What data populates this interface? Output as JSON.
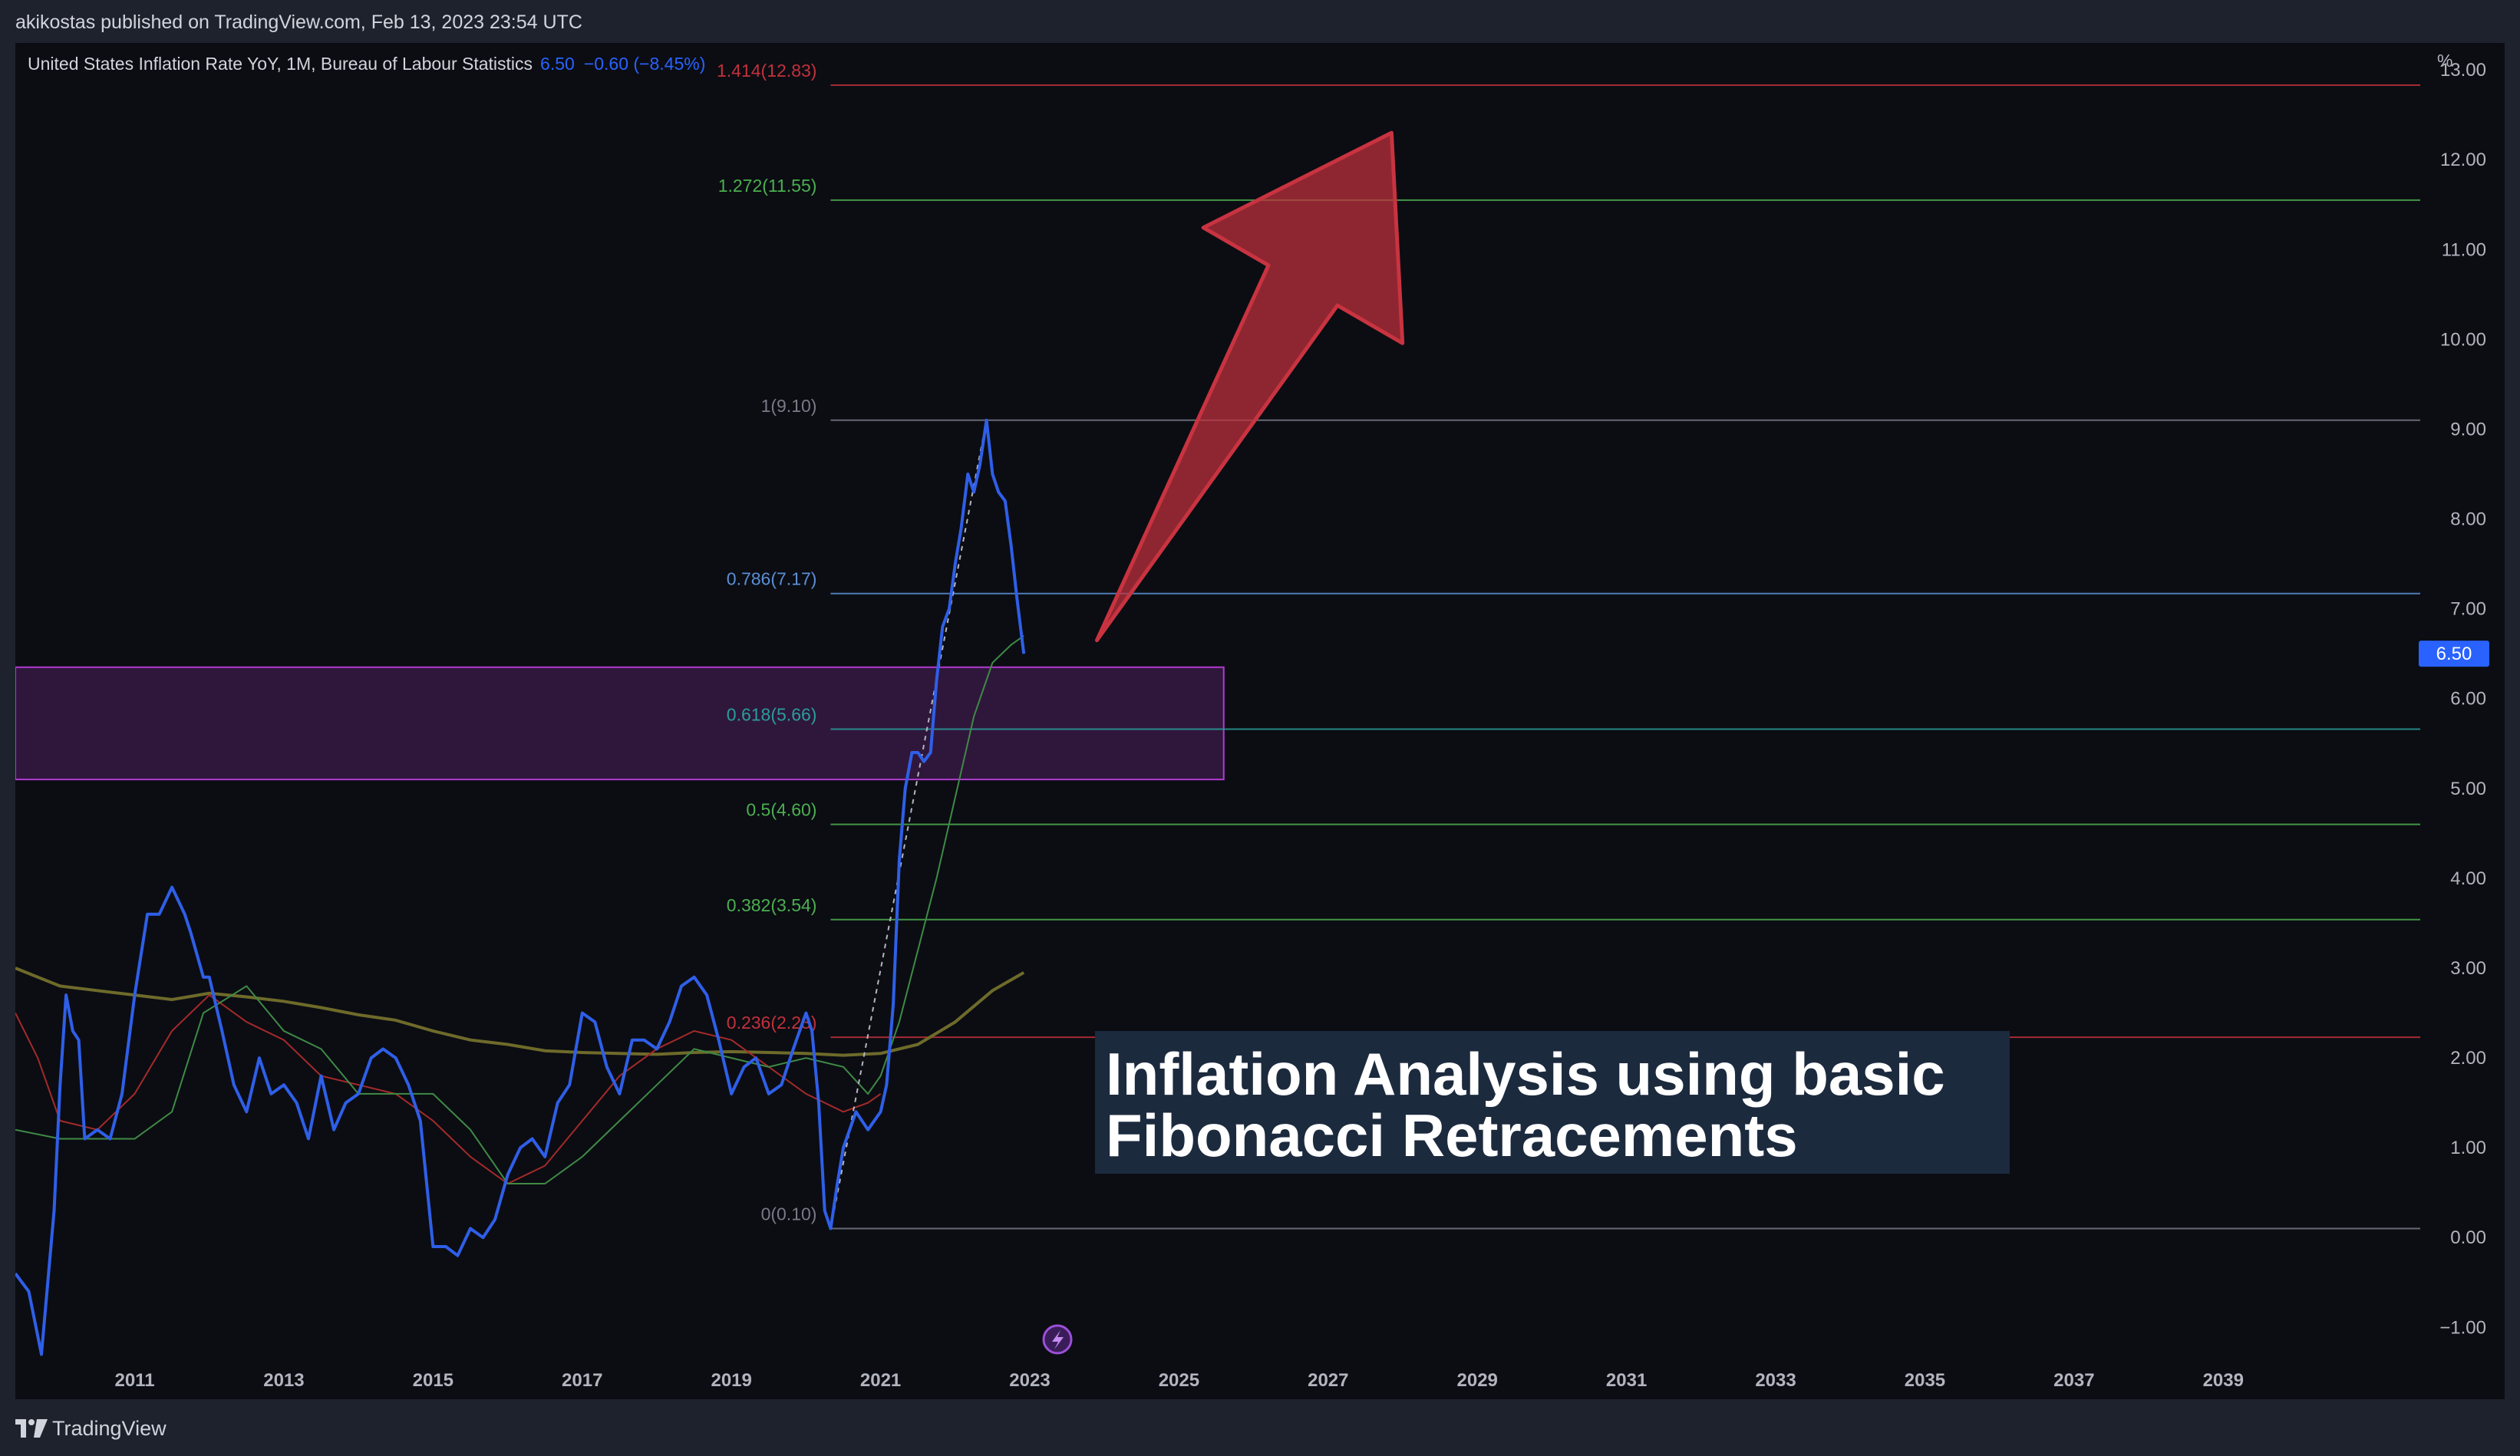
{
  "header": {
    "publisher": "akikostas published on TradingView.com, Feb 13, 2023 23:54 UTC"
  },
  "legend": {
    "series_name": "United States Inflation Rate YoY, 1M, Bureau of Labour Statistics",
    "last_value": "6.50",
    "change": "−0.60 (−8.45%)"
  },
  "axis_unit": "%",
  "overlay": {
    "line1": "Inflation Analysis using basic",
    "line2": "Fibonacci Retracements"
  },
  "footer": {
    "brand": "TradingView",
    "logo_icon": "tradingview-logo-icon"
  },
  "colors": {
    "series": "#2f5fe8",
    "fib_red": "#c2313b",
    "fib_green": "#4caf50",
    "fib_blue": "#5b8fd6",
    "fib_teal": "#2a9d9a",
    "fib_gray": "#787b86",
    "zone": "#b13bd1",
    "arrow": "#c0303d",
    "price_tag": "#2962ff"
  },
  "chart_data": {
    "type": "line",
    "xlabel": "",
    "ylabel": "%",
    "ylim": [
      -1.8,
      13.3
    ],
    "y_ticks": [
      "−1.00",
      "0.00",
      "1.00",
      "2.00",
      "3.00",
      "4.00",
      "5.00",
      "6.00",
      "7.00",
      "8.00",
      "9.00",
      "10.00",
      "11.00",
      "12.00",
      "13.00"
    ],
    "y_tick_values": [
      -1,
      0,
      1,
      2,
      3,
      4,
      5,
      6,
      7,
      8,
      9,
      10,
      11,
      12,
      13
    ],
    "x_ticks": [
      "2011",
      "2013",
      "2015",
      "2017",
      "2019",
      "2021",
      "2023",
      "2025",
      "2027",
      "2029",
      "2031",
      "2033",
      "2035",
      "2037",
      "2039"
    ],
    "x_tick_values": [
      2011,
      2013,
      2015,
      2017,
      2019,
      2021,
      2023,
      2025,
      2027,
      2029,
      2031,
      2033,
      2035,
      2037,
      2039
    ],
    "xlim": [
      2009.4,
      2041.6
    ],
    "last_price_label": "6.50",
    "series": [
      {
        "key": "inflation",
        "x": [
          2009.4,
          2009.58,
          2009.75,
          2009.92,
          2010.0,
          2010.08,
          2010.17,
          2010.25,
          2010.33,
          2010.5,
          2010.67,
          2010.83,
          2011.0,
          2011.17,
          2011.33,
          2011.5,
          2011.67,
          2011.75,
          2011.92,
          2012.0,
          2012.17,
          2012.33,
          2012.5,
          2012.67,
          2012.83,
          2013.0,
          2013.17,
          2013.33,
          2013.5,
          2013.67,
          2013.83,
          2014.0,
          2014.17,
          2014.33,
          2014.5,
          2014.67,
          2014.83,
          2015.0,
          2015.17,
          2015.33,
          2015.5,
          2015.67,
          2015.83,
          2016.0,
          2016.17,
          2016.33,
          2016.5,
          2016.67,
          2016.83,
          2017.0,
          2017.17,
          2017.33,
          2017.5,
          2017.67,
          2017.83,
          2018.0,
          2018.17,
          2018.33,
          2018.5,
          2018.67,
          2018.83,
          2019.0,
          2019.17,
          2019.33,
          2019.5,
          2019.67,
          2019.83,
          2020.0,
          2020.08,
          2020.17,
          2020.25,
          2020.33,
          2020.42,
          2020.5,
          2020.67,
          2020.83,
          2021.0,
          2021.08,
          2021.17,
          2021.25,
          2021.33,
          2021.42,
          2021.5,
          2021.58,
          2021.67,
          2021.75,
          2021.83,
          2021.92,
          2022.0,
          2022.08,
          2022.17,
          2022.25,
          2022.33,
          2022.42,
          2022.5,
          2022.58,
          2022.67,
          2022.75,
          2022.83,
          2022.92
        ],
        "values": [
          -0.4,
          -0.6,
          -1.3,
          0.3,
          1.7,
          2.7,
          2.3,
          2.2,
          1.1,
          1.2,
          1.1,
          1.6,
          2.7,
          3.6,
          3.6,
          3.9,
          3.6,
          3.4,
          2.9,
          2.9,
          2.3,
          1.7,
          1.4,
          2.0,
          1.6,
          1.7,
          1.5,
          1.1,
          1.8,
          1.2,
          1.5,
          1.6,
          2.0,
          2.1,
          2.0,
          1.7,
          1.3,
          -0.1,
          -0.1,
          -0.2,
          0.1,
          0.0,
          0.2,
          0.7,
          1.0,
          1.1,
          0.9,
          1.5,
          1.7,
          2.5,
          2.4,
          1.9,
          1.6,
          2.2,
          2.2,
          2.1,
          2.4,
          2.8,
          2.9,
          2.7,
          2.2,
          1.6,
          1.9,
          2.0,
          1.6,
          1.7,
          2.1,
          2.5,
          2.3,
          1.5,
          0.3,
          0.1,
          0.6,
          1.0,
          1.4,
          1.2,
          1.4,
          1.7,
          2.6,
          4.2,
          5.0,
          5.4,
          5.4,
          5.3,
          5.4,
          6.2,
          6.8,
          7.0,
          7.5,
          7.9,
          8.5,
          8.3,
          8.6,
          9.1,
          8.5,
          8.3,
          8.2,
          7.7,
          7.1,
          6.5
        ]
      },
      {
        "key": "ma_fast",
        "x": [
          2009.4,
          2010.0,
          2010.5,
          2011.0,
          2011.5,
          2011.92,
          2012.5,
          2013.0,
          2013.5,
          2014.0,
          2014.5,
          2015.0,
          2015.5,
          2016.0,
          2016.5,
          2017.0,
          2017.5,
          2018.0,
          2018.5,
          2019.0,
          2019.5,
          2020.0,
          2020.5,
          2020.83,
          2021.0,
          2021.25,
          2021.5,
          2021.75,
          2022.0,
          2022.25,
          2022.5,
          2022.75,
          2022.92
        ],
        "values": [
          1.2,
          1.1,
          1.1,
          1.1,
          1.4,
          2.5,
          2.8,
          2.3,
          2.1,
          1.6,
          1.6,
          1.6,
          1.2,
          0.6,
          0.6,
          0.9,
          1.3,
          1.7,
          2.1,
          2.0,
          1.9,
          2.0,
          1.9,
          1.6,
          1.8,
          2.4,
          3.2,
          4.0,
          4.9,
          5.8,
          6.4,
          6.6,
          6.7
        ]
      },
      {
        "key": "ma_red",
        "x": [
          2009.4,
          2009.7,
          2010.0,
          2010.5,
          2011.0,
          2011.5,
          2012.0,
          2012.5,
          2013.0,
          2013.5,
          2014.0,
          2014.5,
          2015.0,
          2015.5,
          2016.0,
          2016.5,
          2017.0,
          2017.5,
          2018.0,
          2018.5,
          2019.0,
          2019.5,
          2020.0,
          2020.5,
          2020.83,
          2021.0
        ],
        "values": [
          2.5,
          2.0,
          1.3,
          1.2,
          1.6,
          2.3,
          2.7,
          2.4,
          2.2,
          1.8,
          1.7,
          1.6,
          1.3,
          0.9,
          0.6,
          0.8,
          1.3,
          1.8,
          2.1,
          2.3,
          2.2,
          1.9,
          1.6,
          1.4,
          1.5,
          1.6
        ]
      },
      {
        "key": "ma_slow",
        "x": [
          2009.4,
          2010.0,
          2010.5,
          2011.0,
          2011.5,
          2012.0,
          2012.5,
          2013.0,
          2013.5,
          2014.0,
          2014.5,
          2015.0,
          2015.5,
          2016.0,
          2016.5,
          2017.0,
          2017.5,
          2018.0,
          2018.5,
          2019.0,
          2019.5,
          2020.0,
          2020.5,
          2021.0,
          2021.5,
          2022.0,
          2022.5,
          2022.92
        ],
        "values": [
          3.0,
          2.8,
          2.75,
          2.7,
          2.65,
          2.72,
          2.68,
          2.63,
          2.56,
          2.48,
          2.42,
          2.3,
          2.2,
          2.15,
          2.08,
          2.06,
          2.05,
          2.04,
          2.06,
          2.07,
          2.06,
          2.05,
          2.03,
          2.05,
          2.15,
          2.4,
          2.75,
          2.95
        ]
      },
      {
        "key": "fib_trend",
        "x": [
          2020.33,
          2022.42
        ],
        "values": [
          0.1,
          9.1
        ]
      }
    ],
    "fib_levels": [
      {
        "ratio": 1.414,
        "label": "1.414(12.83)",
        "value": 12.83,
        "color": "#c2313b"
      },
      {
        "ratio": 1.272,
        "label": "1.272(11.55)",
        "value": 11.55,
        "color": "#4caf50"
      },
      {
        "ratio": 1,
        "label": "1(9.10)",
        "value": 9.1,
        "color": "#787b86"
      },
      {
        "ratio": 0.786,
        "label": "0.786(7.17)",
        "value": 7.17,
        "color": "#5b8fd6"
      },
      {
        "ratio": 0.618,
        "label": "0.618(5.66)",
        "value": 5.66,
        "color": "#2a9d9a"
      },
      {
        "ratio": 0.5,
        "label": "0.5(4.60)",
        "value": 4.6,
        "color": "#4caf50"
      },
      {
        "ratio": 0.382,
        "label": "0.382(3.54)",
        "value": 3.54,
        "color": "#4caf50"
      },
      {
        "ratio": 0.236,
        "label": "0.236(2.23)",
        "value": 2.23,
        "color": "#c2313b"
      },
      {
        "ratio": 0,
        "label": "0(0.10)",
        "value": 0.1,
        "color": "#787b86"
      }
    ],
    "fib_start_x": 2020.33,
    "zone": {
      "x_start": 2009.4,
      "x_end": 2025.6,
      "y_low": 5.1,
      "y_high": 6.35
    },
    "arrow": {
      "tail_x": 2023.9,
      "tail_y": 6.65,
      "head_x": 2027.85,
      "head_y": 12.3
    }
  }
}
